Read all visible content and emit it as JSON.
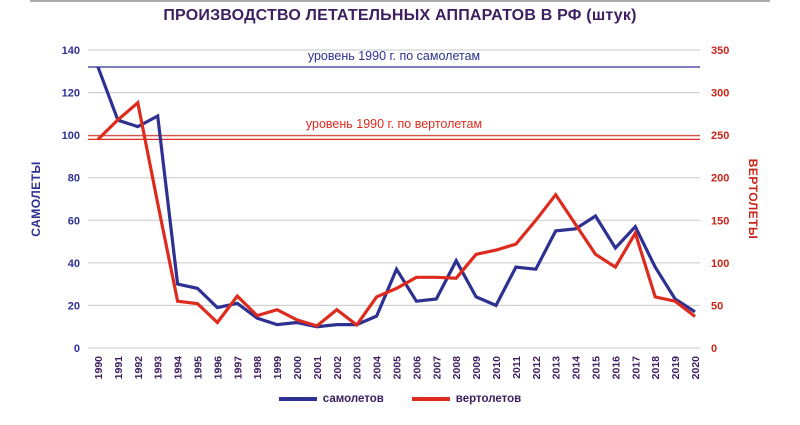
{
  "chart_data": {
    "type": "line",
    "title": "ПРОИЗВОДСТВО ЛЕТАТЕЛЬНЫХ АППАРАТОВ В РФ (штук)",
    "x": [
      "1990",
      "1991",
      "1992",
      "1993",
      "1994",
      "1995",
      "1996",
      "1997",
      "1998",
      "1999",
      "2000",
      "2001",
      "2002",
      "2003",
      "2004",
      "2005",
      "2006",
      "2007",
      "2008",
      "2009",
      "2010",
      "2011",
      "2012",
      "2013",
      "2014",
      "2015",
      "2016",
      "2017",
      "2018",
      "2019",
      "2020"
    ],
    "series": [
      {
        "name": "самолетов",
        "axis": "left",
        "color": "#2e3192",
        "values": [
          132,
          107,
          104,
          109,
          30,
          28,
          19,
          21,
          14,
          11,
          12,
          10,
          11,
          11,
          15,
          37,
          22,
          23,
          41,
          24,
          20,
          38,
          37,
          55,
          56,
          62,
          47,
          57,
          38,
          23,
          17
        ]
      },
      {
        "name": "вертолетов",
        "axis": "right",
        "color": "#dd2c1e",
        "values": [
          245,
          268,
          288,
          170,
          55,
          52,
          30,
          61,
          38,
          45,
          33,
          26,
          45,
          27,
          60,
          70,
          83,
          83,
          82,
          110,
          115,
          122,
          150,
          180,
          145,
          110,
          95,
          135,
          60,
          55,
          37
        ]
      }
    ],
    "left_axis": {
      "label": "САМОЛЕТЫ",
      "ticks": [
        0,
        20,
        40,
        60,
        80,
        100,
        120,
        140
      ],
      "range": [
        0,
        140
      ],
      "color": "#2e3192"
    },
    "right_axis": {
      "label": "ВЕРТОЛЕТЫ",
      "ticks": [
        0,
        50,
        100,
        150,
        200,
        250,
        300,
        350
      ],
      "range": [
        0,
        350
      ],
      "color": "#c9241a"
    },
    "reference_lines": [
      {
        "label": "уровень 1990 г. по самолетам",
        "value": 132,
        "axis": "left",
        "color": "#2e3192",
        "style": "single"
      },
      {
        "label": "уровень 1990 г. по вертолетам",
        "value": 245,
        "axis": "right",
        "color": "#dd2c1e",
        "style": "double"
      }
    ],
    "legend": {
      "position": "bottom",
      "items": [
        "самолетов",
        "вертолетов"
      ]
    },
    "grid": true
  },
  "colors": {
    "title": "#3d2060",
    "year_labels": "#3d2060",
    "legend_text": "#3d2060",
    "gridline": "#c9c9c9",
    "background": "#ffffff"
  }
}
